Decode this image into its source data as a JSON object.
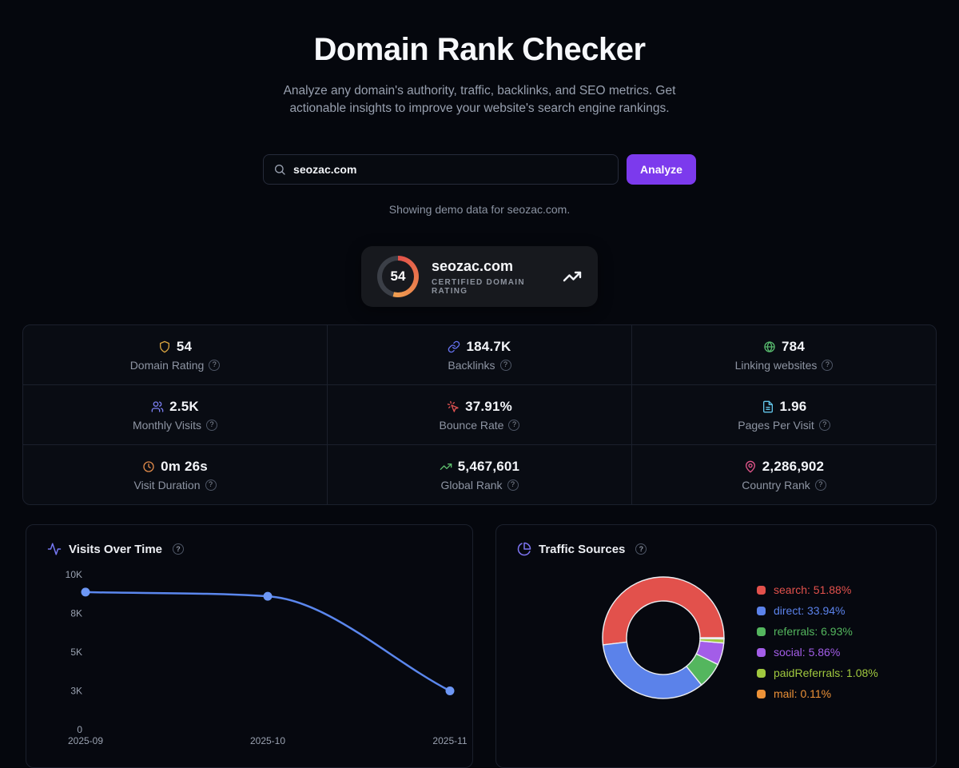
{
  "page": {
    "title": "Domain Rank Checker",
    "subtitle": "Analyze any domain's authority, traffic, backlinks, and SEO metrics. Get actionable insights to improve your website's search engine rankings.",
    "demo_note": "Showing demo data for seozac.com."
  },
  "search": {
    "value": "seozac.com",
    "button_label": "Analyze"
  },
  "badge": {
    "score": "54",
    "score_pct": 54,
    "domain": "seozac.com",
    "caption": "CERTIFIED DOMAIN RATING"
  },
  "stats": [
    {
      "icon": "shield-icon",
      "color": "#d9a440",
      "value": "54",
      "label": "Domain Rating"
    },
    {
      "icon": "link-icon",
      "color": "#6672f0",
      "value": "184.7K",
      "label": "Backlinks"
    },
    {
      "icon": "globe-icon",
      "color": "#57b96d",
      "value": "784",
      "label": "Linking websites"
    },
    {
      "icon": "users-icon",
      "color": "#7b7ff2",
      "value": "2.5K",
      "label": "Monthly Visits"
    },
    {
      "icon": "pointer-click-icon",
      "color": "#e05252",
      "value": "37.91%",
      "label": "Bounce Rate"
    },
    {
      "icon": "file-icon",
      "color": "#62c4e8",
      "value": "1.96",
      "label": "Pages Per Visit"
    },
    {
      "icon": "clock-icon",
      "color": "#e08a4a",
      "value": "0m 26s",
      "label": "Visit Duration"
    },
    {
      "icon": "trending-up-icon",
      "color": "#5fbf6e",
      "value": "5,467,601",
      "label": "Global Rank"
    },
    {
      "icon": "map-pin-icon",
      "color": "#e0558a",
      "value": "2,286,902",
      "label": "Country Rank"
    }
  ],
  "chart_data": [
    {
      "type": "line",
      "title": "Visits Over Time",
      "icon_color": "#7577f2",
      "x": [
        "2025-09",
        "2025-10",
        "2025-11"
      ],
      "series": [
        {
          "name": "visits",
          "values": [
            8870,
            8600,
            2500
          ]
        }
      ],
      "ylim": [
        0,
        10000
      ],
      "yticks": [
        {
          "value": 0,
          "label": "0"
        },
        {
          "value": 2500,
          "label": "3K"
        },
        {
          "value": 5000,
          "label": "5K"
        },
        {
          "value": 7500,
          "label": "8K"
        },
        {
          "value": 10000,
          "label": "10K"
        }
      ],
      "line_color": "#5b87ee",
      "dot_color": "#6d97f5",
      "grid": false,
      "legend": false
    },
    {
      "type": "pie",
      "title": "Traffic Sources",
      "icon_color": "#7d74f2",
      "donut": true,
      "legend_position": "right",
      "segments": [
        {
          "name": "search",
          "pct": 51.88,
          "color": "#e2514c"
        },
        {
          "name": "direct",
          "pct": 33.94,
          "color": "#5b82ea"
        },
        {
          "name": "referrals",
          "pct": 6.93,
          "color": "#54b65e"
        },
        {
          "name": "social",
          "pct": 5.86,
          "color": "#a35de8"
        },
        {
          "name": "paidReferrals",
          "pct": 1.08,
          "color": "#a0c83e"
        },
        {
          "name": "mail",
          "pct": 0.11,
          "color": "#ec9137"
        }
      ]
    }
  ],
  "colors": {
    "background": "#05070d",
    "accent_purple": "#7c3aed",
    "gauge_start": "#e25049",
    "gauge_end": "#f0a050",
    "gauge_track": "#3b3f47",
    "help_text": "?"
  }
}
